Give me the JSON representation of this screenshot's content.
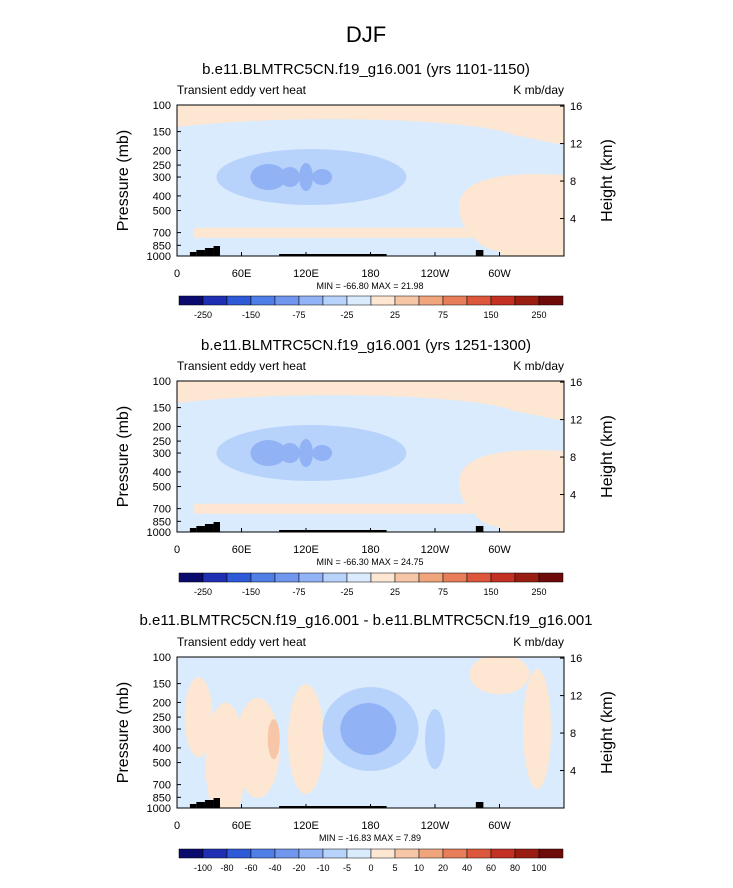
{
  "title": "DJF",
  "chart_data": [
    {
      "type": "contour",
      "title": "b.e11.BLMTRC5CN.f19_g16.001 (yrs 1101-1150)",
      "left_string": "Transient eddy vert heat",
      "right_string": "K mb/day",
      "ylabel": "Pressure (mb)",
      "ylabel_right": "Height (km)",
      "x_ticks": [
        "0",
        "60E",
        "120E",
        "180",
        "120W",
        "60W"
      ],
      "pressure_ticks": [
        "100",
        "150",
        "200",
        "250",
        "300",
        "400",
        "500",
        "700",
        "850",
        "1000"
      ],
      "height_ticks": [
        "4",
        "8",
        "12",
        "16"
      ],
      "minmax_label": "MIN = -66.80  MAX =  21.98",
      "min": -66.8,
      "max": 21.98,
      "levels": [
        -250,
        -200,
        -150,
        -100,
        -75,
        -50,
        -25,
        0,
        25,
        50,
        75,
        100,
        150,
        200,
        250
      ],
      "colorbar_labels": [
        "-250",
        "-150",
        "-75",
        "-25",
        "25",
        "75",
        "150",
        "250"
      ]
    },
    {
      "type": "contour",
      "title": "b.e11.BLMTRC5CN.f19_g16.001 (yrs 1251-1300)",
      "left_string": "Transient eddy vert heat",
      "right_string": "K mb/day",
      "ylabel": "Pressure (mb)",
      "ylabel_right": "Height (km)",
      "x_ticks": [
        "0",
        "60E",
        "120E",
        "180",
        "120W",
        "60W"
      ],
      "pressure_ticks": [
        "100",
        "150",
        "200",
        "250",
        "300",
        "400",
        "500",
        "700",
        "850",
        "1000"
      ],
      "height_ticks": [
        "4",
        "8",
        "12",
        "16"
      ],
      "minmax_label": "MIN = -66.30  MAX =  24.75",
      "min": -66.3,
      "max": 24.75,
      "levels": [
        -250,
        -200,
        -150,
        -100,
        -75,
        -50,
        -25,
        0,
        25,
        50,
        75,
        100,
        150,
        200,
        250
      ],
      "colorbar_labels": [
        "-250",
        "-150",
        "-75",
        "-25",
        "25",
        "75",
        "150",
        "250"
      ]
    },
    {
      "type": "contour",
      "title": "b.e11.BLMTRC5CN.f19_g16.001 - b.e11.BLMTRC5CN.f19_g16.001",
      "left_string": "Transient eddy vert heat",
      "right_string": "K mb/day",
      "ylabel": "Pressure (mb)",
      "ylabel_right": "Height (km)",
      "x_ticks": [
        "0",
        "60E",
        "120E",
        "180",
        "120W",
        "60W"
      ],
      "pressure_ticks": [
        "100",
        "150",
        "200",
        "250",
        "300",
        "400",
        "500",
        "700",
        "850",
        "1000"
      ],
      "height_ticks": [
        "4",
        "8",
        "12",
        "16"
      ],
      "minmax_label": "MIN = -16.83  MAX =   7.89",
      "min": -16.83,
      "max": 7.89,
      "levels": [
        -100,
        -80,
        -60,
        -40,
        -20,
        -10,
        -5,
        0,
        5,
        10,
        20,
        40,
        60,
        80,
        100
      ],
      "colorbar_labels": [
        "-100",
        "-80",
        "-60",
        "-40",
        "-20",
        "-10",
        "-5",
        "0",
        "5",
        "10",
        "20",
        "40",
        "60",
        "80",
        "100"
      ]
    }
  ],
  "colormap": [
    "#0b0b6e",
    "#1e2fb4",
    "#2e5ad8",
    "#4f7fe6",
    "#7096ee",
    "#91b2f5",
    "#b8d3fb",
    "#d9ebfd",
    "#fde6d2",
    "#f7c6a6",
    "#f1a57d",
    "#e77e59",
    "#dc573b",
    "#c33125",
    "#9a1d12",
    "#6e0a0a"
  ],
  "topography_color": "#000000"
}
